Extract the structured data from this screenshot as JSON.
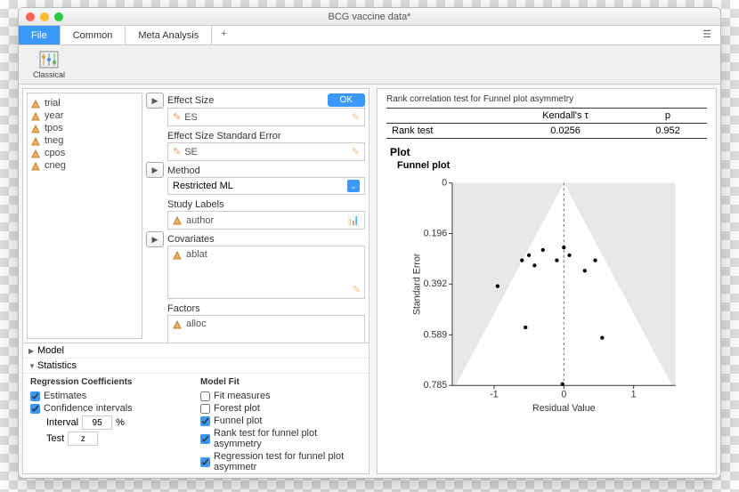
{
  "window": {
    "title": "BCG vaccine data*"
  },
  "tabs": {
    "items": [
      "File",
      "Common",
      "Meta Analysis"
    ],
    "active": 0
  },
  "toolbar": {
    "classical": "Classical"
  },
  "vars": [
    "trial",
    "year",
    "tpos",
    "tneg",
    "cpos",
    "cneg"
  ],
  "fields": {
    "effectSize": {
      "label": "Effect Size",
      "value": "ES"
    },
    "effectSizeSE": {
      "label": "Effect Size Standard Error",
      "value": "SE"
    },
    "method": {
      "label": "Method",
      "value": "Restricted ML"
    },
    "studyLabels": {
      "label": "Study Labels",
      "value": "author"
    },
    "covariates": {
      "label": "Covariates",
      "value": "ablat"
    },
    "factors": {
      "label": "Factors",
      "value": "alloc"
    },
    "ok": "OK"
  },
  "sections": {
    "model": "Model",
    "statistics": "Statistics"
  },
  "regcoef": {
    "title": "Regression Coefficients",
    "estimates": "Estimates",
    "ci": "Confidence intervals",
    "interval_label": "Interval",
    "interval_val": "95",
    "pct": "%",
    "test_label": "Test",
    "test_val": "z"
  },
  "modelfit": {
    "title": "Model Fit",
    "fit": "Fit measures",
    "forest": "Forest plot",
    "funnel": "Funnel plot",
    "rank": "Rank test for funnel plot asymmetry",
    "regr": "Regression test for funnel plot asymmetr"
  },
  "results": {
    "tabletitle": "Rank correlation test for Funnel plot asymmetry",
    "col1": "Kendall's τ",
    "col2": "p",
    "rowlbl": "Rank test",
    "v1": "0.0256",
    "v2": "0.952",
    "plot_h": "Plot",
    "plot_t": "Funnel plot",
    "ylabel": "Standard Error",
    "xlabel": "Residual Value",
    "yticks": [
      "0",
      "0.196",
      "0.392",
      "0.589",
      "0.785"
    ],
    "xticks": [
      "-1",
      "0",
      "1"
    ],
    "funnel": {
      "bg": "#e8e8e8",
      "triangle_fill": "#ffffff",
      "axis_color": "#333333",
      "point_color": "#000000",
      "point_r": 2.2,
      "x_range": [
        -1.6,
        1.6
      ],
      "y_range": [
        0,
        0.785
      ],
      "apex_x": 0,
      "base_half": 1.55,
      "points": [
        [
          -0.95,
          0.4
        ],
        [
          -0.6,
          0.3
        ],
        [
          -0.5,
          0.28
        ],
        [
          -0.42,
          0.32
        ],
        [
          -0.3,
          0.26
        ],
        [
          -0.1,
          0.3
        ],
        [
          0.0,
          0.25
        ],
        [
          0.08,
          0.28
        ],
        [
          0.3,
          0.34
        ],
        [
          0.45,
          0.3
        ],
        [
          -0.55,
          0.56
        ],
        [
          0.55,
          0.6
        ],
        [
          -0.02,
          0.78
        ]
      ]
    }
  }
}
